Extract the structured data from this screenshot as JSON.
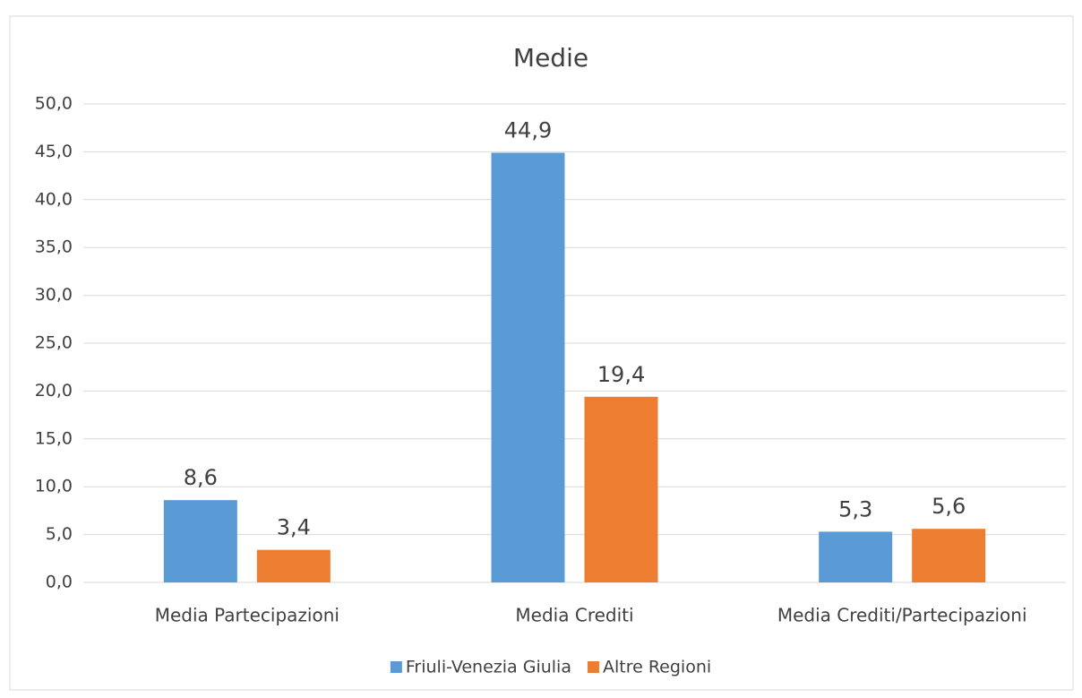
{
  "chart_data": {
    "type": "bar",
    "title": "Medie",
    "categories": [
      "Media Partecipazioni",
      "Media Crediti",
      "Media Crediti/Partecipazioni"
    ],
    "series": [
      {
        "name": "Friuli-Venezia Giulia",
        "color": "#5b9bd5",
        "values": [
          8.6,
          44.9,
          5.3
        ],
        "value_labels": [
          "8,6",
          "44,9",
          "5,3"
        ]
      },
      {
        "name": "Altre Regioni",
        "color": "#ed7d31",
        "values": [
          3.4,
          19.4,
          5.6
        ],
        "value_labels": [
          "3,4",
          "19,4",
          "5,6"
        ]
      }
    ],
    "ylim": [
      0,
      50
    ],
    "yticks": [
      {
        "value": 0,
        "label": "0,0"
      },
      {
        "value": 5,
        "label": "5,0"
      },
      {
        "value": 10,
        "label": "10,0"
      },
      {
        "value": 15,
        "label": "15,0"
      },
      {
        "value": 20,
        "label": "20,0"
      },
      {
        "value": 25,
        "label": "25,0"
      },
      {
        "value": 30,
        "label": "30,0"
      },
      {
        "value": 35,
        "label": "35,0"
      },
      {
        "value": 40,
        "label": "40,0"
      },
      {
        "value": 45,
        "label": "45,0"
      },
      {
        "value": 50,
        "label": "50,0"
      }
    ],
    "grid": true,
    "legend": "bottom"
  }
}
